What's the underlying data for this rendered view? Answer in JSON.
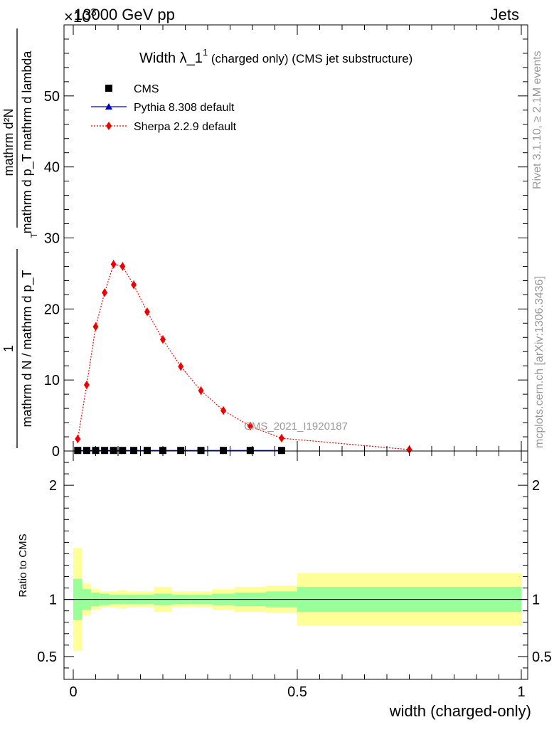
{
  "header": {
    "energy_label": "13000 GeV pp",
    "process_label": "Jets",
    "exponent_label": "×10",
    "exponent_power": "3"
  },
  "side_labels": {
    "rivet": "Rivet 3.1.10, ≥ 2.1M events",
    "mcplots": "mcplots.cern.ch [arXiv:1306.3436]"
  },
  "analysis_id": "CMS_2021_I1920187",
  "colors": {
    "cms": "#000000",
    "pythia": "#0000cc",
    "sherpa": "#ee0000",
    "band_inner": "#99ff99",
    "band_outer": "#ffff99"
  },
  "chart_data": [
    {
      "type": "scatter",
      "panel": "main",
      "title_main": "Width λ_1",
      "title_sup": "1",
      "title_rest": " (charged only) (CMS jet substructure)",
      "ylabel_num": "mathrm d²N",
      "ylabel_den": "mathrm d p_T mathrm d lambda",
      "ylabel_prefix": "mathrm d N / mathrm d p_T",
      "ylabel_one": "1",
      "ylabel_sub": "T",
      "xlim": [
        0,
        1
      ],
      "ylim": [
        0,
        60
      ],
      "y_scale_factor": 1000,
      "y_ticks": [
        0,
        10,
        20,
        30,
        40,
        50
      ],
      "legend_position": "top-left",
      "series": [
        {
          "name": "CMS",
          "marker": "square",
          "x": [
            0.01,
            0.03,
            0.05,
            0.07,
            0.09,
            0.11,
            0.135,
            0.165,
            0.2,
            0.24,
            0.285,
            0.335,
            0.395,
            0.465
          ],
          "y": [
            0.08,
            0.08,
            0.08,
            0.08,
            0.08,
            0.08,
            0.08,
            0.08,
            0.08,
            0.08,
            0.08,
            0.08,
            0.08,
            0.08
          ]
        },
        {
          "name": "Pythia 8.308 default",
          "marker": "triangle",
          "x": [
            0.01,
            0.03,
            0.05,
            0.07,
            0.09,
            0.11,
            0.135,
            0.165,
            0.2,
            0.24,
            0.285,
            0.335,
            0.395,
            0.465
          ],
          "y": [
            0.08,
            0.08,
            0.08,
            0.08,
            0.08,
            0.08,
            0.08,
            0.08,
            0.08,
            0.08,
            0.08,
            0.08,
            0.08,
            0.08
          ]
        },
        {
          "name": "Sherpa 2.2.9 default",
          "marker": "diamond",
          "line": "dotted",
          "x": [
            0.01,
            0.03,
            0.05,
            0.07,
            0.09,
            0.11,
            0.135,
            0.165,
            0.2,
            0.24,
            0.285,
            0.335,
            0.395,
            0.465,
            0.75
          ],
          "y": [
            1.7,
            9.3,
            17.5,
            22.3,
            26.3,
            26.0,
            23.4,
            19.6,
            15.7,
            11.9,
            8.5,
            5.7,
            3.5,
            1.8,
            0.2
          ]
        }
      ]
    },
    {
      "type": "area",
      "panel": "ratio",
      "ylabel": "Ratio to CMS",
      "xlabel": "width (charged-only)",
      "xlim": [
        0,
        1
      ],
      "ylim": [
        0.3,
        2.3
      ],
      "y_ticks": [
        0.5,
        1,
        2
      ],
      "y_tick_labels": [
        "0.5",
        "1",
        "2"
      ],
      "x_ticks": [
        0,
        0.5,
        1
      ],
      "x_tick_labels": [
        "0",
        "0.5",
        "1"
      ],
      "reference": 1,
      "bins": [
        {
          "lo": 0.0,
          "hi": 0.02,
          "in_lo": 0.82,
          "in_hi": 1.18,
          "out_lo": 0.55,
          "out_hi": 1.45
        },
        {
          "lo": 0.02,
          "hi": 0.04,
          "in_lo": 0.91,
          "in_hi": 1.09,
          "out_lo": 0.86,
          "out_hi": 1.14
        },
        {
          "lo": 0.04,
          "hi": 0.06,
          "in_lo": 0.94,
          "in_hi": 1.06,
          "out_lo": 0.91,
          "out_hi": 1.09
        },
        {
          "lo": 0.06,
          "hi": 0.08,
          "in_lo": 0.95,
          "in_hi": 1.05,
          "out_lo": 0.93,
          "out_hi": 1.07
        },
        {
          "lo": 0.08,
          "hi": 0.1,
          "in_lo": 0.96,
          "in_hi": 1.04,
          "out_lo": 0.93,
          "out_hi": 1.07
        },
        {
          "lo": 0.1,
          "hi": 0.12,
          "in_lo": 0.96,
          "in_hi": 1.04,
          "out_lo": 0.92,
          "out_hi": 1.08
        },
        {
          "lo": 0.12,
          "hi": 0.15,
          "in_lo": 0.96,
          "in_hi": 1.04,
          "out_lo": 0.93,
          "out_hi": 1.07
        },
        {
          "lo": 0.15,
          "hi": 0.18,
          "in_lo": 0.96,
          "in_hi": 1.04,
          "out_lo": 0.93,
          "out_hi": 1.07
        },
        {
          "lo": 0.18,
          "hi": 0.22,
          "in_lo": 0.95,
          "in_hi": 1.05,
          "out_lo": 0.89,
          "out_hi": 1.11
        },
        {
          "lo": 0.22,
          "hi": 0.26,
          "in_lo": 0.96,
          "in_hi": 1.04,
          "out_lo": 0.93,
          "out_hi": 1.07
        },
        {
          "lo": 0.26,
          "hi": 0.31,
          "in_lo": 0.96,
          "in_hi": 1.04,
          "out_lo": 0.93,
          "out_hi": 1.07
        },
        {
          "lo": 0.31,
          "hi": 0.36,
          "in_lo": 0.95,
          "in_hi": 1.05,
          "out_lo": 0.91,
          "out_hi": 1.09
        },
        {
          "lo": 0.36,
          "hi": 0.43,
          "in_lo": 0.94,
          "in_hi": 1.06,
          "out_lo": 0.89,
          "out_hi": 1.11
        },
        {
          "lo": 0.43,
          "hi": 0.5,
          "in_lo": 0.93,
          "in_hi": 1.07,
          "out_lo": 0.88,
          "out_hi": 1.12
        },
        {
          "lo": 0.5,
          "hi": 1.0,
          "in_lo": 0.89,
          "in_hi": 1.11,
          "out_lo": 0.77,
          "out_hi": 1.23
        }
      ]
    }
  ]
}
